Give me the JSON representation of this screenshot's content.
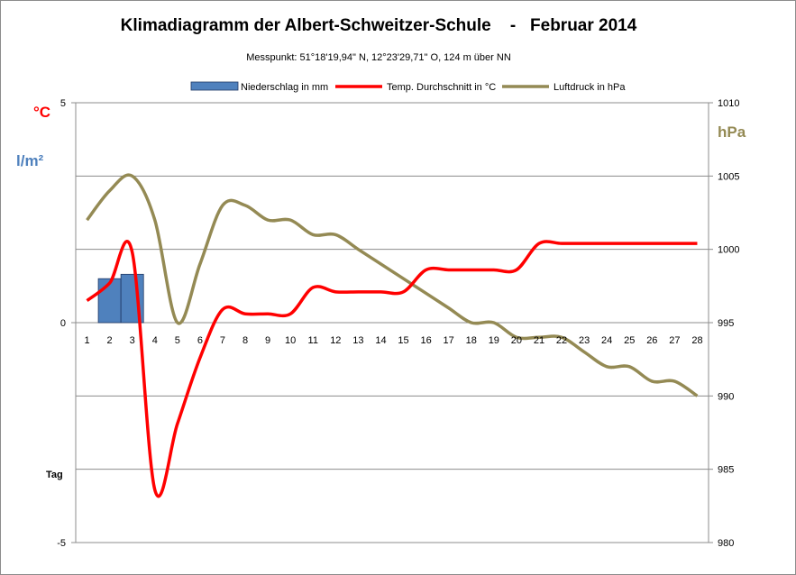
{
  "chart_data": {
    "type": "combo",
    "title": "Klimadiagramm der Albert-Schweitzer-Schule    -   Februar 2014",
    "subtitle": "Messpunkt:  51°18'19,94\" N,  12°23'29,71\" O,  124 m über NN",
    "legend": {
      "placement": "top",
      "entries": [
        "Niederschlag in mm",
        "Temp. Durchschnitt in °C",
        "Luftdruck in hPa"
      ]
    },
    "left_axis": {
      "unit_temp": "°C",
      "unit_precip": "l/m²",
      "ylim": [
        -5,
        5
      ],
      "ticks": [
        "5",
        "0",
        "-5"
      ]
    },
    "right_axis": {
      "unit": "hPa",
      "ylim": [
        980,
        1010
      ],
      "ticks": [
        "1010",
        "1005",
        "1000",
        "995",
        "990",
        "985",
        "980"
      ]
    },
    "x_axis": {
      "label": "Tag",
      "categories": [
        "1",
        "2",
        "3",
        "4",
        "5",
        "6",
        "7",
        "8",
        "9",
        "10",
        "11",
        "12",
        "13",
        "14",
        "15",
        "16",
        "17",
        "18",
        "19",
        "20",
        "21",
        "22",
        "23",
        "24",
        "25",
        "26",
        "27",
        "28"
      ]
    },
    "grid": true,
    "series": [
      {
        "name": "Niederschlag in mm",
        "type": "bar",
        "axis": "left",
        "color": "#4f81bd",
        "values": [
          0,
          1.0,
          1.1,
          0,
          0,
          0,
          0,
          0,
          0,
          0,
          0,
          0,
          0,
          0,
          0,
          0,
          0,
          0,
          0,
          0,
          0,
          0,
          0,
          0,
          0,
          0,
          0,
          0
        ]
      },
      {
        "name": "Temp. Durchschnitt in °C",
        "type": "line",
        "axis": "left",
        "color": "#ff0000",
        "values": [
          0.5,
          0.9,
          1.6,
          -3.8,
          -2.3,
          -0.8,
          0.3,
          0.2,
          0.2,
          0.2,
          0.8,
          0.7,
          0.7,
          0.7,
          0.7,
          1.2,
          1.2,
          1.2,
          1.2,
          1.2,
          1.8,
          1.8,
          1.8,
          1.8,
          1.8,
          1.8,
          1.8,
          1.8
        ]
      },
      {
        "name": "Luftdruck in hPa",
        "type": "line",
        "axis": "right",
        "color": "#948a54",
        "values": [
          1002,
          1004,
          1005,
          1002,
          995,
          999,
          1003,
          1003,
          1002,
          1002,
          1001,
          1001,
          1000,
          999,
          998,
          997,
          996,
          995,
          995,
          994,
          994,
          994,
          993,
          992,
          992,
          991,
          991,
          990
        ]
      }
    ]
  }
}
